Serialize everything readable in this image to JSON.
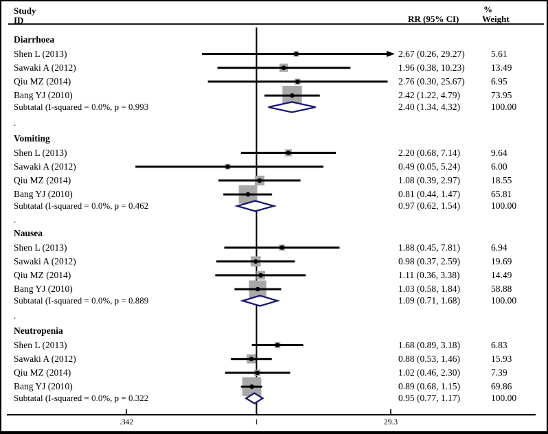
{
  "header": {
    "col_study_line1": "Study",
    "col_study_line2": "ID",
    "col_rr": "RR (95% CI)",
    "col_weight_line1": "%",
    "col_weight_line2": "Weight"
  },
  "axis": {
    "tick_labels": [
      ".342",
      "1",
      "29.3"
    ]
  },
  "separator_glyph": ".",
  "colors": {
    "square": "#a8a8a8",
    "diamond_outline": "#191970",
    "ci_line": "#000000",
    "null_line": "#000000",
    "axis_line": "#000000"
  },
  "chart_data": {
    "type": "forest",
    "x_scale": "log",
    "x_ticks": [
      0.342,
      1,
      29.3
    ],
    "null_value": 1,
    "columns": [
      "Study ID",
      "RR (95% CI)",
      "% Weight"
    ],
    "groups": [
      {
        "name": "Diarrhoea",
        "studies": [
          {
            "label": "Shen L (2013)",
            "rr": 2.67,
            "ci_low": 0.26,
            "ci_high": 29.27,
            "rr_text": "2.67 (0.26, 29.27)",
            "weight": 5.61,
            "weight_text": "5.61"
          },
          {
            "label": "Sawaki A (2012)",
            "rr": 1.96,
            "ci_low": 0.38,
            "ci_high": 10.23,
            "rr_text": "1.96 (0.38, 10.23)",
            "weight": 13.49,
            "weight_text": "13.49"
          },
          {
            "label": "Qiu MZ (2014)",
            "rr": 2.76,
            "ci_low": 0.3,
            "ci_high": 25.67,
            "rr_text": "2.76 (0.30, 25.67)",
            "weight": 6.95,
            "weight_text": "6.95"
          },
          {
            "label": "Bang YJ (2010)",
            "rr": 2.42,
            "ci_low": 1.22,
            "ci_high": 4.79,
            "rr_text": "2.42 (1.22, 4.79)",
            "weight": 73.95,
            "weight_text": "73.95"
          }
        ],
        "subtotal": {
          "label": "Subtatal (I-squared = 0.0%, p = 0.993",
          "rr": 2.4,
          "ci_low": 1.34,
          "ci_high": 4.32,
          "rr_text": "2.40 (1.34, 4.32)",
          "weight_text": "100.00"
        }
      },
      {
        "name": "Vomiting",
        "studies": [
          {
            "label": "Shen L (2013)",
            "rr": 2.2,
            "ci_low": 0.68,
            "ci_high": 7.14,
            "rr_text": "2.20 (0.68, 7.14)",
            "weight": 9.64,
            "weight_text": "9.64"
          },
          {
            "label": "Sawaki A (2012)",
            "rr": 0.49,
            "ci_low": 0.05,
            "ci_high": 5.24,
            "rr_text": "0.49 (0.05, 5.24)",
            "weight": 6.0,
            "weight_text": "6.00"
          },
          {
            "label": "Qiu MZ (2014)",
            "rr": 1.08,
            "ci_low": 0.39,
            "ci_high": 2.97,
            "rr_text": "1.08 (0.39, 2.97)",
            "weight": 18.55,
            "weight_text": "18.55"
          },
          {
            "label": "Bang YJ (2010)",
            "rr": 0.81,
            "ci_low": 0.44,
            "ci_high": 1.47,
            "rr_text": "0.81 (0.44, 1.47)",
            "weight": 65.81,
            "weight_text": "65.81"
          }
        ],
        "subtotal": {
          "label": "Subtatal (I-squared = 0.0%, p = 0.462",
          "rr": 0.97,
          "ci_low": 0.62,
          "ci_high": 1.54,
          "rr_text": "0.97 (0.62, 1.54)",
          "weight_text": "100.00"
        }
      },
      {
        "name": "Nausea",
        "studies": [
          {
            "label": "Shen L (2013)",
            "rr": 1.88,
            "ci_low": 0.45,
            "ci_high": 7.81,
            "rr_text": "1.88 (0.45, 7.81)",
            "weight": 6.94,
            "weight_text": "6.94"
          },
          {
            "label": "Sawaki A (2012)",
            "rr": 0.98,
            "ci_low": 0.37,
            "ci_high": 2.59,
            "rr_text": "0.98 (0.37, 2.59)",
            "weight": 19.69,
            "weight_text": "19.69"
          },
          {
            "label": "Qiu MZ (2014)",
            "rr": 1.11,
            "ci_low": 0.36,
            "ci_high": 3.38,
            "rr_text": "1.11 (0.36, 3.38)",
            "weight": 14.49,
            "weight_text": "14.49"
          },
          {
            "label": "Bang YJ (2010)",
            "rr": 1.03,
            "ci_low": 0.58,
            "ci_high": 1.84,
            "rr_text": "1.03 (0.58, 1.84)",
            "weight": 58.88,
            "weight_text": "58.88"
          }
        ],
        "subtotal": {
          "label": "Subtatal (I-squared = 0.0%, p = 0.889",
          "rr": 1.09,
          "ci_low": 0.71,
          "ci_high": 1.68,
          "rr_text": "1.09 (0.71, 1.68)",
          "weight_text": "100.00"
        }
      },
      {
        "name": "Neutropenia",
        "studies": [
          {
            "label": "Shen L (2013)",
            "rr": 1.68,
            "ci_low": 0.89,
            "ci_high": 3.18,
            "rr_text": "1.68 (0.89, 3.18)",
            "weight": 6.83,
            "weight_text": "6.83"
          },
          {
            "label": "Sawaki A (2012)",
            "rr": 0.88,
            "ci_low": 0.53,
            "ci_high": 1.46,
            "rr_text": "0.88 (0.53, 1.46)",
            "weight": 15.93,
            "weight_text": "15.93"
          },
          {
            "label": "Qiu MZ (2014)",
            "rr": 1.02,
            "ci_low": 0.46,
            "ci_high": 2.3,
            "rr_text": "1.02 (0.46, 2.30)",
            "weight": 7.39,
            "weight_text": "7.39"
          },
          {
            "label": "Bang YJ (2010)",
            "rr": 0.89,
            "ci_low": 0.68,
            "ci_high": 1.15,
            "rr_text": "0.89 (0.68, 1.15)",
            "weight": 69.86,
            "weight_text": "69.86"
          }
        ],
        "subtotal": {
          "label": "Subtatal (I-squared = 0.0%, p = 0.322",
          "rr": 0.95,
          "ci_low": 0.77,
          "ci_high": 1.17,
          "rr_text": "0.95 (0.77, 1.17)",
          "weight_text": "100.00"
        }
      }
    ]
  }
}
